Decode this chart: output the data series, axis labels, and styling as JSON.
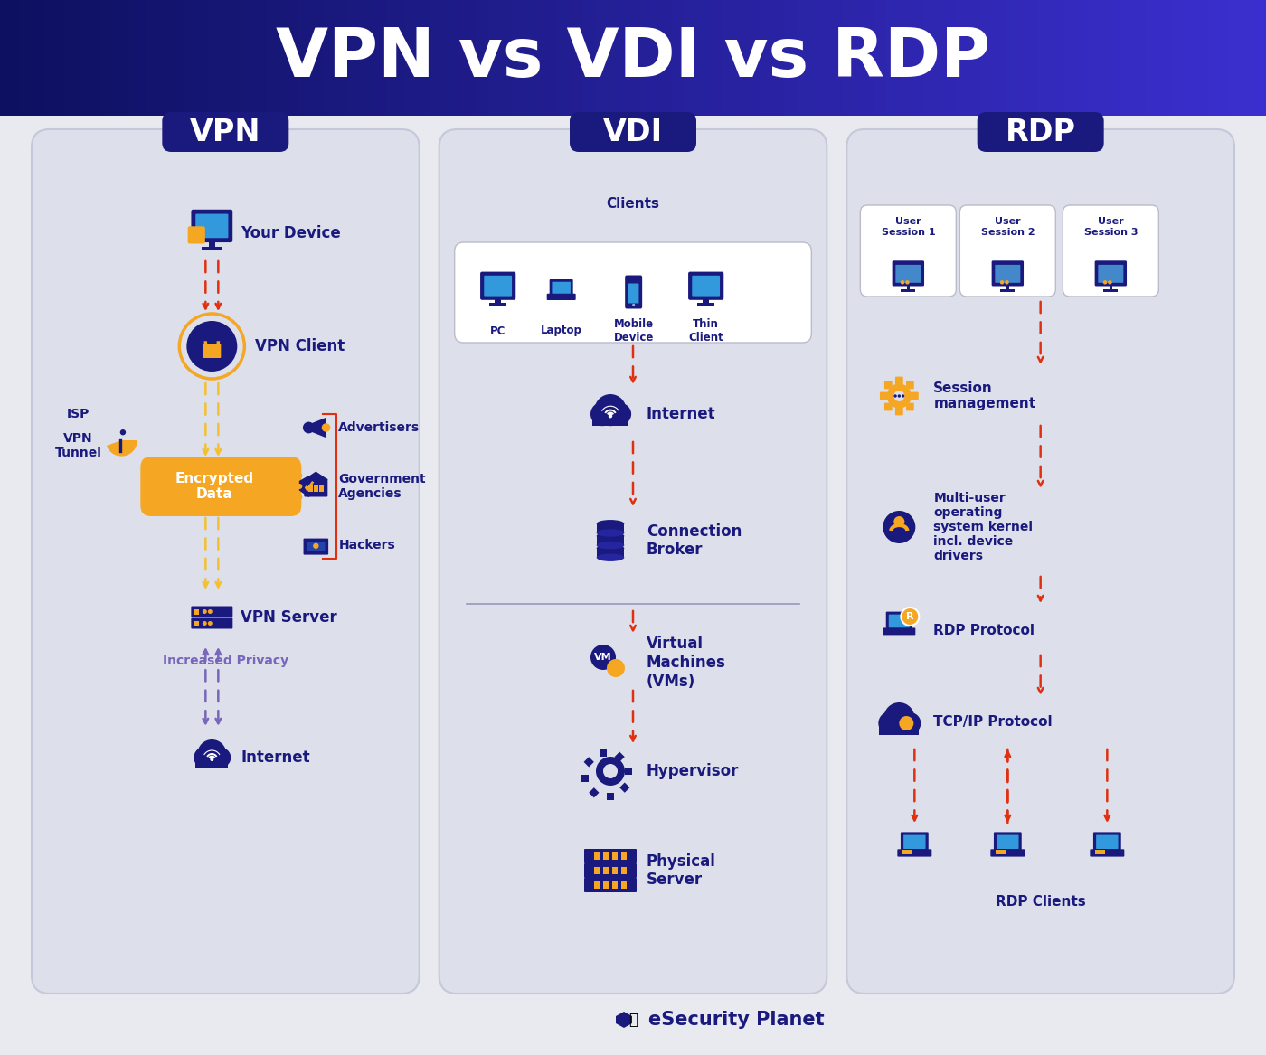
{
  "title": "VPN vs VDI vs RDP",
  "bg_color": "#e8eaf0",
  "header_left": "#0d1060",
  "header_right": "#3b2fcf",
  "panel_bg": "#dde0ea",
  "panel_border": "#c5c8d8",
  "dark_blue": "#1a1a7e",
  "medium_blue": "#2525a0",
  "orange": "#f5a623",
  "orange2": "#f07e17",
  "red_line": "#e03010",
  "purple_line": "#7766bb",
  "yellow_line": "#f5c030",
  "white": "#ffffff",
  "footer_text": "eSecurity Planet",
  "vpn_label": "VPN",
  "vdi_label": "VDI",
  "rdp_label": "RDP",
  "vpn_your_device": "Your Device",
  "vpn_client": "VPN Client",
  "vpn_isp": "ISP",
  "vpn_tunnel": "VPN\nTunnel",
  "vpn_encrypted": "Encrypted\nData",
  "vpn_advertisers": "Advertisers",
  "vpn_government": "Government\nAgencies",
  "vpn_hackers": "Hackers",
  "vpn_server": "VPN Server",
  "vpn_privacy": "Increased Privacy",
  "vpn_internet": "Internet",
  "vdi_clients": "Clients",
  "vdi_pc": "PC",
  "vdi_laptop": "Laptop",
  "vdi_mobile": "Mobile\nDevice",
  "vdi_thin": "Thin\nClient",
  "vdi_internet": "Internet",
  "vdi_broker": "Connection\nBroker",
  "vdi_vms": "Virtual\nMachines\n(VMs)",
  "vdi_hypervisor": "Hypervisor",
  "vdi_physical": "Physical\nServer",
  "rdp_session1": "User\nSession 1",
  "rdp_session2": "User\nSession 2",
  "rdp_session3": "User\nSession 3",
  "rdp_session_mgmt": "Session\nmanagement",
  "rdp_multi_os": "Multi-user\noperating\nsystem kernel\nincl. device\ndrivers",
  "rdp_protocol": "RDP Protocol",
  "rdp_tcpip": "TCP/IP Protocol",
  "rdp_clients": "RDP Clients"
}
